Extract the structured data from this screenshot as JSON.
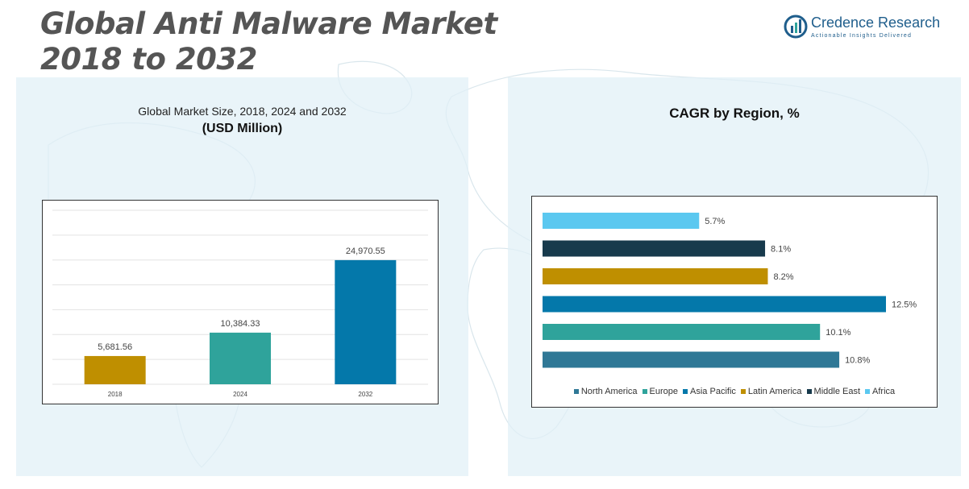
{
  "header": {
    "title_line1": "Global Anti Malware Market",
    "title_line2": "2018 to 2032"
  },
  "brand": {
    "name": "Credence Research",
    "tagline": "Actionable Insights Delivered",
    "icon": "bar-chart-circle-icon",
    "color": "#1f5e8c"
  },
  "left_panel": {
    "subtitle": "Global Market Size, 2018, 2024 and 2032",
    "unit": "(USD Million)"
  },
  "right_panel": {
    "title": "CAGR by Region, %"
  },
  "chart_data": [
    {
      "type": "bar",
      "title": "Global Market Size, 2018, 2024 and 2032",
      "ylabel": "(USD Million)",
      "categories": [
        "2018",
        "2024",
        "2032"
      ],
      "values": [
        5681.56,
        10384.33,
        24970.55
      ],
      "labels": [
        "5,681.56",
        "10,384.33",
        "24,970.55"
      ],
      "colors": [
        "#bf8f00",
        "#2fa39b",
        "#0478aa"
      ],
      "ylim": [
        0,
        35000
      ],
      "grid": true
    },
    {
      "type": "bar",
      "orientation": "horizontal",
      "title": "CAGR by Region, %",
      "categories": [
        "Africa",
        "Middle East",
        "Latin America",
        "Asia Pacific",
        "Europe",
        "North America"
      ],
      "values": [
        5.7,
        8.1,
        8.2,
        12.5,
        10.1,
        10.8
      ],
      "labels": [
        "5.7%",
        "8.1%",
        "8.2%",
        "12.5%",
        "10.1%",
        "10.8%"
      ],
      "colors": [
        "#5bc8f0",
        "#173a4c",
        "#bf8f00",
        "#0478aa",
        "#2fa39b",
        "#2f7896"
      ],
      "xlim": [
        0,
        12.5
      ],
      "legend": {
        "position": "bottom",
        "entries": [
          {
            "name": "North America",
            "color": "#2f7896"
          },
          {
            "name": "Europe",
            "color": "#2fa39b"
          },
          {
            "name": "Asia Pacific",
            "color": "#0478aa"
          },
          {
            "name": "Latin America",
            "color": "#bf8f00"
          },
          {
            "name": "Middle East",
            "color": "#173a4c"
          },
          {
            "name": "Africa",
            "color": "#5bc8f0"
          }
        ]
      }
    }
  ]
}
